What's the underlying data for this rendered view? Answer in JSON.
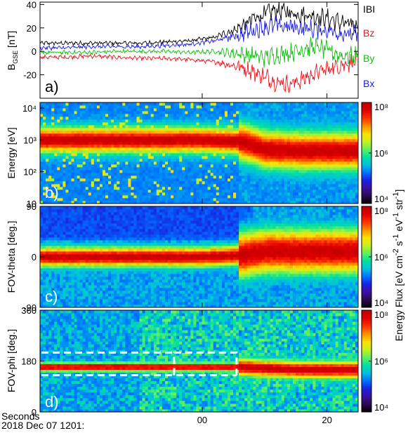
{
  "chart_data": [
    {
      "type": "line",
      "panel_label": "a)",
      "ylabel": "B",
      "ylabel_sub": "GSE",
      "ylabel_unit": "[nT]",
      "ylim": [
        -40,
        42
      ],
      "yticks": [
        -20,
        0,
        20,
        40
      ],
      "x": [
        -22,
        -18,
        -14,
        -10,
        -6,
        -2,
        2,
        6,
        8,
        10,
        12,
        14,
        16,
        18,
        20,
        22,
        24
      ],
      "series": [
        {
          "name": "IBI",
          "color": "#000000",
          "values": [
            7,
            7,
            7,
            7,
            8,
            9,
            12,
            20,
            27,
            32,
            35,
            33,
            32,
            30,
            28,
            25,
            22
          ]
        },
        {
          "name": "Bz",
          "color": "#e8141c",
          "values": [
            -5,
            -4,
            -5,
            -6,
            -6,
            -7,
            -9,
            -13,
            -17,
            -22,
            -26,
            -28,
            -24,
            -19,
            -15,
            -12,
            -9
          ]
        },
        {
          "name": "By",
          "color": "#0fbf0f",
          "values": [
            -1,
            -1,
            0,
            0,
            0,
            -1,
            0,
            -2,
            -4,
            -5,
            -3,
            -1,
            2,
            4,
            1,
            -3,
            -4
          ]
        },
        {
          "name": "Bx",
          "color": "#1a1ae0",
          "values": [
            3,
            4,
            4,
            4,
            5,
            6,
            9,
            14,
            18,
            21,
            22,
            21,
            20,
            19,
            18,
            16,
            14
          ]
        }
      ]
    },
    {
      "type": "heatmap",
      "panel_label": "b)",
      "ylabel": "Energy [eV]",
      "yscale": "log",
      "yticks": [
        "10",
        "10²",
        "10³",
        "10⁴"
      ],
      "ylim": [
        10,
        15000
      ],
      "description_values": {
        "x": [
          -22,
          -10,
          0,
          6,
          10,
          16,
          24
        ],
        "peak_energy_eV": [
          1000,
          1000,
          1000,
          900,
          500,
          450,
          450
        ]
      }
    },
    {
      "type": "heatmap",
      "panel_label": "c)",
      "ylabel": "FOV-theta [deg.]",
      "ylim": [
        -90,
        90
      ],
      "yticks": [
        "-90",
        "0",
        "90"
      ],
      "description_values": {
        "x": [
          -22,
          -10,
          0,
          6,
          10,
          16,
          24
        ],
        "beam_center_deg": [
          0,
          0,
          0,
          3,
          10,
          10,
          10
        ]
      }
    },
    {
      "type": "heatmap",
      "panel_label": "d)",
      "ylabel": "FOV-phi [deg.]",
      "ylim": [
        0,
        360
      ],
      "yticks": [
        "0",
        "180",
        "360"
      ],
      "description_values": {
        "x": [
          -22,
          -10,
          0,
          6,
          10,
          16,
          24
        ],
        "beam_center_deg": [
          160,
          160,
          160,
          160,
          155,
          150,
          150
        ]
      },
      "box": {
        "x_left": -4.5,
        "x_right": 5.5,
        "phi_low": 130,
        "phi_high": 210
      }
    }
  ],
  "colorbar": {
    "label": "Energy Flux",
    "units": "[eV cm",
    "units_exp1": "-2",
    "units_mid1": " s",
    "units_exp2": "-1",
    "units_mid2": " eV",
    "units_exp3": "-1",
    "units_mid3": " str",
    "units_exp4": "-1",
    "units_end": "]",
    "range": [
      10000,
      100000000
    ],
    "ticks": [
      "10⁴",
      "10⁶",
      "10⁸"
    ],
    "colors": [
      "#000000",
      "#2a0a50",
      "#3b10a0",
      "#1a20e0",
      "#0070ff",
      "#00c0e0",
      "#00e0a0",
      "#60f060",
      "#c8f020",
      "#ffe000",
      "#ff9000",
      "#ff3000",
      "#e00000",
      "#c00000"
    ]
  },
  "x_axis": {
    "xlim": [
      -26,
      25
    ],
    "ticks": [
      {
        "v": 0,
        "label": "00"
      },
      {
        "v": 20,
        "label": "20"
      }
    ],
    "caption1": "Seconds",
    "caption2": "2018 Dec 07 1201:"
  }
}
